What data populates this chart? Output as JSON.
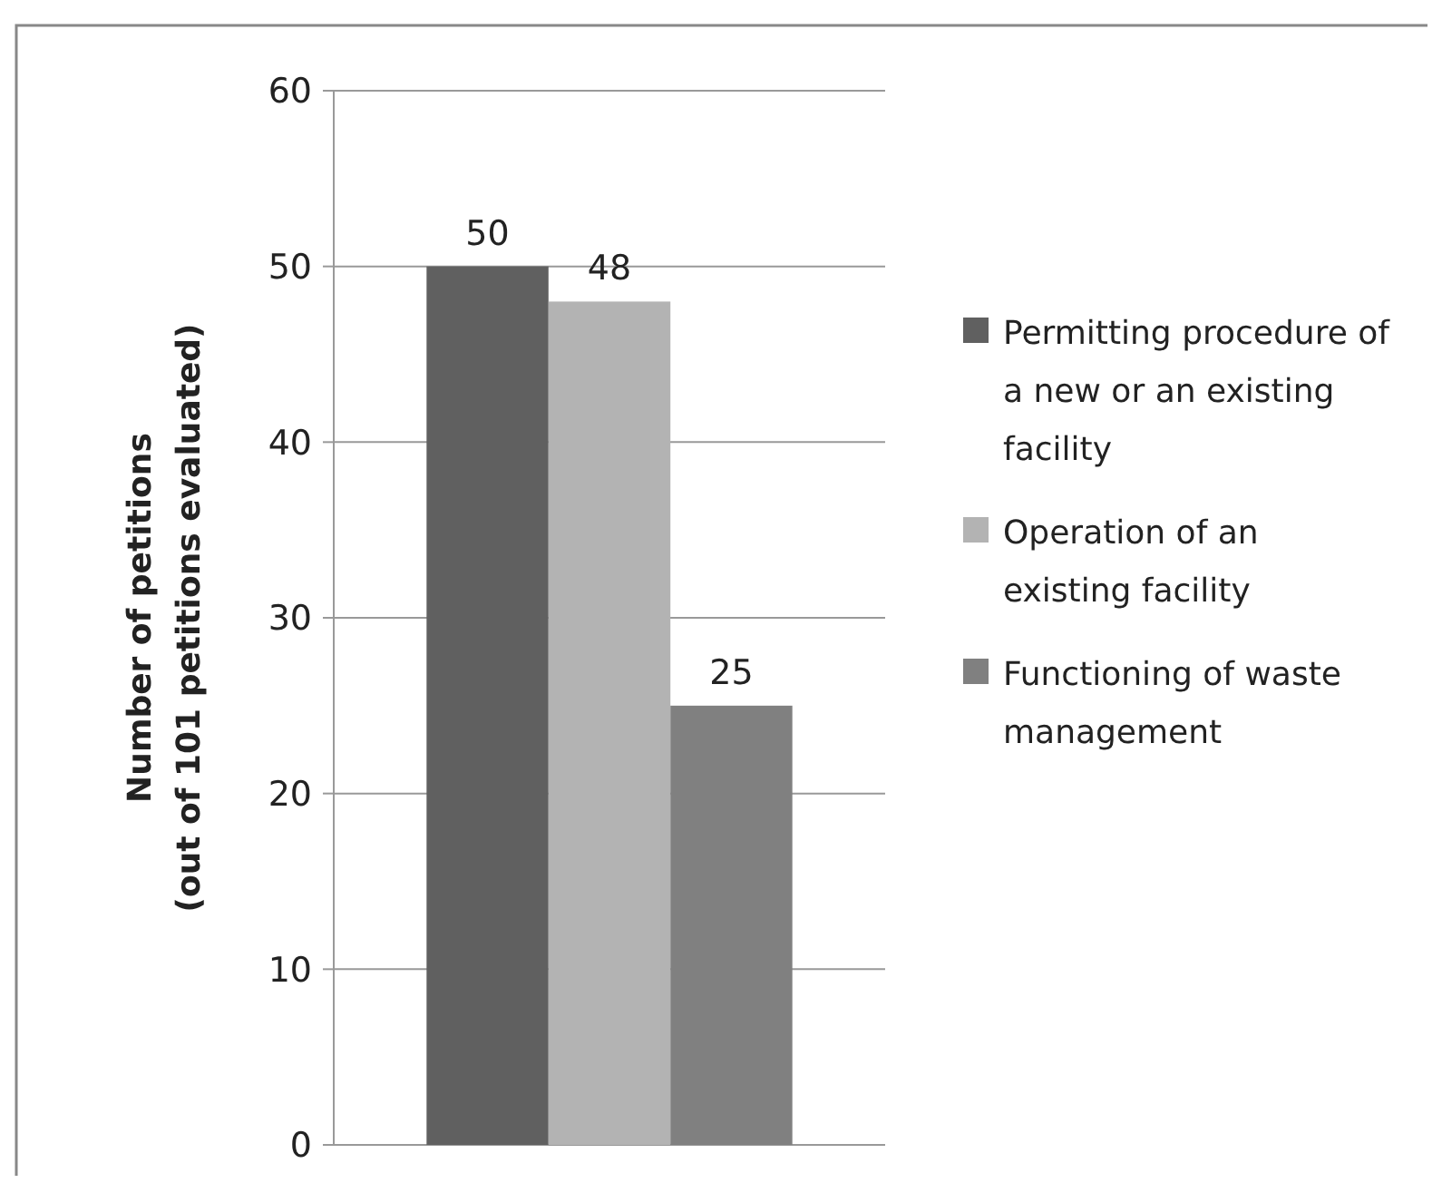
{
  "chart_data": {
    "type": "bar",
    "ylabel": "Number of petitions\n(out of 101 petitions evaluated)",
    "categories": [
      null
    ],
    "series": [
      {
        "name": "Permitting procedure of a new or an existing facility",
        "color": "#606060",
        "values": [
          50
        ]
      },
      {
        "name": "Operation of an existing facility",
        "color": "#b3b3b3",
        "values": [
          48
        ]
      },
      {
        "name": "Functioning of waste management",
        "color": "#808080",
        "values": [
          25
        ]
      }
    ],
    "ylim": [
      0,
      60
    ],
    "yticks": [
      0,
      10,
      20,
      30,
      40,
      50,
      60
    ],
    "grid": "y",
    "legend": "right",
    "data_labels": true
  }
}
